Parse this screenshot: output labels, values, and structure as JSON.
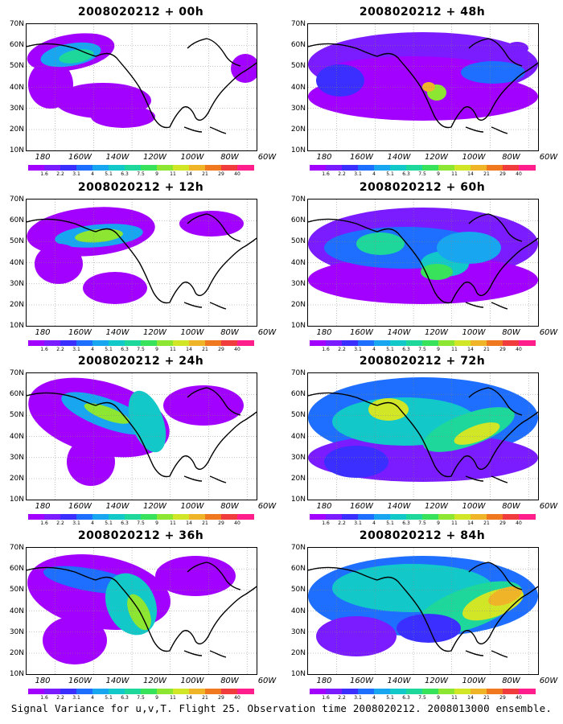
{
  "caption": "Signal Variance for u,v,T. Flight 25. Observation time 2008020212. 2008013000 ensemble.",
  "lat_labels": [
    "70N",
    "60N",
    "50N",
    "40N",
    "30N",
    "20N",
    "10N"
  ],
  "lon_labels": [
    "180",
    "160W",
    "140W",
    "120W",
    "100W",
    "80W",
    "60W"
  ],
  "legend_labels": [
    "1.6",
    "2.2",
    "3.1",
    "4",
    "5.1",
    "6.3",
    "7.5",
    "9",
    "11",
    "14",
    "21",
    "29",
    "40"
  ],
  "legend_colors": [
    "#a200ff",
    "#7a1cff",
    "#3a2fff",
    "#1e6fff",
    "#18a6f0",
    "#12c8c8",
    "#1ed79a",
    "#38e25a",
    "#8ce632",
    "#d2e628",
    "#f0b428",
    "#f0781e",
    "#f03c3c",
    "#ff1e8c"
  ],
  "panels": [
    {
      "title": "2008020212 + 00h"
    },
    {
      "title": "2008020212 + 48h"
    },
    {
      "title": "2008020212 + 12h"
    },
    {
      "title": "2008020212 + 60h"
    },
    {
      "title": "2008020212 + 24h"
    },
    {
      "title": "2008020212 + 72h"
    },
    {
      "title": "2008020212 + 36h"
    },
    {
      "title": "2008020212 + 84h"
    }
  ]
}
